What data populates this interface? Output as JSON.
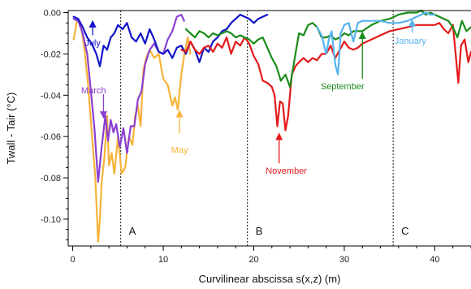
{
  "chart_data": {
    "type": "line",
    "xlabel": "Curvilinear abscissa s(x,z) (m)",
    "ylabel": "Twall - Tair  (°C)",
    "xlim": [
      -0.5,
      44
    ],
    "ylim": [
      -0.113,
      0.001
    ],
    "x_ticks": [
      0,
      10,
      20,
      30,
      40
    ],
    "y_ticks": [
      0.0,
      -0.02,
      -0.04,
      -0.06,
      -0.08,
      -0.1
    ],
    "y_tick_labels": [
      "0.00",
      "-0.02",
      "-0.04",
      "-0.06",
      "-0.08",
      "-0.10"
    ],
    "grid": false,
    "dividers": [
      {
        "x": 5.3,
        "label": "A"
      },
      {
        "x": 19.3,
        "label": "B"
      },
      {
        "x": 35.4,
        "label": "C"
      }
    ],
    "series": [
      {
        "name": "May",
        "color": "#f7b33a",
        "points": [
          [
            0.1,
            -0.013
          ],
          [
            0.5,
            -0.003
          ],
          [
            0.9,
            -0.006
          ],
          [
            1.3,
            -0.018
          ],
          [
            1.7,
            -0.035
          ],
          [
            2.1,
            -0.058
          ],
          [
            2.5,
            -0.08
          ],
          [
            2.8,
            -0.111
          ],
          [
            3.0,
            -0.1
          ],
          [
            3.2,
            -0.082
          ],
          [
            3.5,
            -0.07
          ],
          [
            3.8,
            -0.05
          ],
          [
            4.0,
            -0.074
          ],
          [
            4.3,
            -0.068
          ],
          [
            4.6,
            -0.078
          ],
          [
            5.0,
            -0.06
          ],
          [
            5.4,
            -0.078
          ],
          [
            5.8,
            -0.075
          ],
          [
            6.2,
            -0.06
          ],
          [
            6.6,
            -0.064
          ],
          [
            6.9,
            -0.05
          ],
          [
            7.2,
            -0.045
          ],
          [
            7.5,
            -0.055
          ],
          [
            7.8,
            -0.028
          ],
          [
            8.1,
            -0.022
          ],
          [
            8.5,
            -0.018
          ],
          [
            9.0,
            -0.022
          ],
          [
            9.5,
            -0.02
          ],
          [
            10.0,
            -0.032
          ],
          [
            10.5,
            -0.035
          ],
          [
            11.0,
            -0.045
          ],
          [
            11.3,
            -0.041
          ],
          [
            11.6,
            -0.047
          ],
          [
            12.0,
            -0.03
          ],
          [
            12.3,
            -0.021
          ],
          [
            12.7,
            -0.012
          ],
          [
            13.0,
            -0.02
          ]
        ]
      },
      {
        "name": "March",
        "color": "#8b3fd1",
        "points": [
          [
            0.1,
            -0.003
          ],
          [
            0.6,
            -0.004
          ],
          [
            1.1,
            -0.01
          ],
          [
            1.6,
            -0.02
          ],
          [
            2.0,
            -0.038
          ],
          [
            2.4,
            -0.056
          ],
          [
            2.8,
            -0.082
          ],
          [
            3.2,
            -0.065
          ],
          [
            3.6,
            -0.05
          ],
          [
            3.9,
            -0.062
          ],
          [
            4.2,
            -0.052
          ],
          [
            4.5,
            -0.058
          ],
          [
            4.8,
            -0.054
          ],
          [
            5.2,
            -0.065
          ],
          [
            5.6,
            -0.056
          ],
          [
            6.0,
            -0.068
          ],
          [
            6.4,
            -0.055
          ],
          [
            6.8,
            -0.055
          ],
          [
            7.2,
            -0.042
          ],
          [
            7.6,
            -0.038
          ],
          [
            8.0,
            -0.025
          ],
          [
            8.5,
            -0.018
          ],
          [
            9.0,
            -0.015
          ],
          [
            9.5,
            -0.019
          ],
          [
            10.0,
            -0.02
          ],
          [
            10.5,
            -0.013
          ],
          [
            11.0,
            -0.009
          ],
          [
            11.5,
            -0.002
          ],
          [
            12.0,
            -0.001
          ],
          [
            12.3,
            -0.004
          ]
        ]
      },
      {
        "name": "July",
        "color": "#1414c8",
        "points": [
          [
            0.1,
            -0.002
          ],
          [
            0.6,
            -0.003
          ],
          [
            1.1,
            -0.007
          ],
          [
            1.6,
            -0.012
          ],
          [
            2.1,
            -0.015
          ],
          [
            2.6,
            -0.02
          ],
          [
            3.0,
            -0.026
          ],
          [
            3.4,
            -0.016
          ],
          [
            3.8,
            -0.018
          ],
          [
            4.2,
            -0.012
          ],
          [
            4.6,
            -0.01
          ],
          [
            5.0,
            -0.006
          ],
          [
            5.5,
            -0.008
          ],
          [
            6.0,
            -0.005
          ],
          [
            6.5,
            -0.012
          ],
          [
            7.0,
            -0.014
          ],
          [
            7.5,
            -0.01
          ],
          [
            8.0,
            -0.015
          ],
          [
            8.5,
            -0.008
          ],
          [
            9.0,
            -0.013
          ],
          [
            9.5,
            -0.019
          ],
          [
            10.0,
            -0.02
          ],
          [
            10.5,
            -0.018
          ],
          [
            11.0,
            -0.022
          ],
          [
            11.5,
            -0.017
          ],
          [
            12.0,
            -0.016
          ],
          [
            12.5,
            -0.02
          ],
          [
            13.0,
            -0.014
          ],
          [
            13.5,
            -0.018
          ],
          [
            14.0,
            -0.024
          ],
          [
            14.5,
            -0.017
          ],
          [
            15.0,
            -0.019
          ],
          [
            15.5,
            -0.014
          ],
          [
            16.0,
            -0.012
          ],
          [
            16.5,
            -0.009
          ],
          [
            17.0,
            -0.008
          ],
          [
            17.5,
            -0.005
          ],
          [
            18.0,
            -0.003
          ],
          [
            18.5,
            -0.001
          ],
          [
            19.0,
            -0.002
          ],
          [
            19.5,
            -0.003
          ],
          [
            20.0,
            -0.005
          ],
          [
            20.5,
            -0.003
          ],
          [
            21.0,
            -0.002
          ],
          [
            21.5,
            -0.001
          ]
        ]
      },
      {
        "name": "November",
        "color": "#e51a1a",
        "points": [
          [
            12.0,
            -0.018
          ],
          [
            12.5,
            -0.019
          ],
          [
            13.0,
            -0.014
          ],
          [
            13.5,
            -0.018
          ],
          [
            14.0,
            -0.02
          ],
          [
            14.5,
            -0.017
          ],
          [
            15.0,
            -0.016
          ],
          [
            15.5,
            -0.019
          ],
          [
            16.0,
            -0.015
          ],
          [
            16.5,
            -0.017
          ],
          [
            17.0,
            -0.012
          ],
          [
            17.5,
            -0.02
          ],
          [
            18.0,
            -0.014
          ],
          [
            18.5,
            -0.016
          ],
          [
            19.0,
            -0.012
          ],
          [
            19.5,
            -0.015
          ],
          [
            20.0,
            -0.021
          ],
          [
            20.5,
            -0.025
          ],
          [
            21.0,
            -0.033
          ],
          [
            21.5,
            -0.034
          ],
          [
            22.0,
            -0.036
          ],
          [
            22.3,
            -0.04
          ],
          [
            22.6,
            -0.055
          ],
          [
            22.9,
            -0.043
          ],
          [
            23.2,
            -0.044
          ],
          [
            23.5,
            -0.057
          ],
          [
            23.8,
            -0.05
          ],
          [
            24.2,
            -0.03
          ],
          [
            24.6,
            -0.026
          ],
          [
            25.0,
            -0.024
          ],
          [
            25.5,
            -0.022
          ],
          [
            26.0,
            -0.024
          ],
          [
            26.5,
            -0.022
          ],
          [
            27.0,
            -0.023
          ],
          [
            27.5,
            -0.02
          ],
          [
            28.0,
            -0.02
          ],
          [
            28.5,
            -0.016
          ],
          [
            29.0,
            -0.022
          ],
          [
            29.5,
            -0.018
          ],
          [
            30.0,
            -0.014
          ],
          [
            30.5,
            -0.017
          ],
          [
            31.0,
            -0.018
          ],
          [
            31.5,
            -0.017
          ],
          [
            32.0,
            -0.015
          ],
          [
            33.0,
            -0.013
          ],
          [
            34.0,
            -0.011
          ],
          [
            35.0,
            -0.009
          ],
          [
            36.0,
            -0.008
          ],
          [
            37.0,
            -0.007
          ],
          [
            38.0,
            -0.006
          ],
          [
            39.0,
            -0.006
          ],
          [
            40.0,
            -0.006
          ],
          [
            40.5,
            -0.005
          ],
          [
            41.0,
            -0.008
          ],
          [
            41.5,
            -0.01
          ],
          [
            42.0,
            -0.006
          ],
          [
            42.3,
            -0.02
          ],
          [
            42.6,
            -0.034
          ],
          [
            42.9,
            -0.016
          ],
          [
            43.3,
            -0.013
          ],
          [
            43.7,
            -0.024
          ],
          [
            44.0,
            -0.019
          ]
        ]
      },
      {
        "name": "September",
        "color": "#1a8c1a",
        "points": [
          [
            12.5,
            -0.008
          ],
          [
            13.0,
            -0.01
          ],
          [
            13.5,
            -0.012
          ],
          [
            14.0,
            -0.009
          ],
          [
            14.5,
            -0.01
          ],
          [
            15.0,
            -0.012
          ],
          [
            15.5,
            -0.01
          ],
          [
            16.0,
            -0.011
          ],
          [
            16.5,
            -0.01
          ],
          [
            17.0,
            -0.009
          ],
          [
            17.5,
            -0.01
          ],
          [
            18.0,
            -0.012
          ],
          [
            18.5,
            -0.011
          ],
          [
            19.0,
            -0.012
          ],
          [
            19.5,
            -0.013
          ],
          [
            20.0,
            -0.015
          ],
          [
            20.5,
            -0.013
          ],
          [
            21.0,
            -0.012
          ],
          [
            21.5,
            -0.017
          ],
          [
            22.0,
            -0.022
          ],
          [
            22.5,
            -0.026
          ],
          [
            23.0,
            -0.033
          ],
          [
            23.5,
            -0.03
          ],
          [
            24.0,
            -0.036
          ],
          [
            24.3,
            -0.028
          ],
          [
            24.6,
            -0.02
          ],
          [
            25.0,
            -0.01
          ],
          [
            25.5,
            -0.011
          ],
          [
            26.0,
            -0.006
          ],
          [
            26.5,
            -0.005
          ],
          [
            27.0,
            -0.007
          ],
          [
            27.5,
            -0.012
          ],
          [
            28.0,
            -0.012
          ],
          [
            28.5,
            -0.011
          ],
          [
            29.0,
            -0.013
          ],
          [
            29.5,
            -0.012
          ],
          [
            30.0,
            -0.01
          ],
          [
            30.5,
            -0.011
          ],
          [
            31.0,
            -0.009
          ],
          [
            31.5,
            -0.009
          ],
          [
            32.0,
            -0.009
          ],
          [
            33.0,
            -0.006
          ],
          [
            34.0,
            -0.004
          ],
          [
            35.0,
            -0.003
          ],
          [
            36.0,
            -0.001
          ],
          [
            37.0,
            0.0
          ],
          [
            38.0,
            0.0
          ],
          [
            38.5,
            0.001
          ],
          [
            39.0,
            -0.001
          ],
          [
            39.5,
            0.0
          ],
          [
            40.0,
            -0.001
          ],
          [
            40.5,
            -0.002
          ],
          [
            41.0,
            -0.003
          ],
          [
            41.5,
            -0.004
          ],
          [
            42.0,
            -0.007
          ],
          [
            42.5,
            -0.012
          ],
          [
            43.0,
            -0.004
          ],
          [
            43.5,
            -0.009
          ],
          [
            44.0,
            -0.007
          ]
        ]
      },
      {
        "name": "January",
        "color": "#56b4ef",
        "points": [
          [
            27.0,
            -0.007
          ],
          [
            27.5,
            -0.011
          ],
          [
            28.0,
            -0.02
          ],
          [
            28.3,
            -0.013
          ],
          [
            28.6,
            -0.009
          ],
          [
            29.0,
            -0.025
          ],
          [
            29.3,
            -0.03
          ],
          [
            29.6,
            -0.01
          ],
          [
            30.0,
            -0.006
          ],
          [
            30.5,
            -0.005
          ],
          [
            31.0,
            -0.014
          ],
          [
            31.5,
            -0.005
          ],
          [
            32.0,
            -0.004
          ],
          [
            33.0,
            -0.004
          ],
          [
            34.0,
            -0.004
          ],
          [
            35.0,
            -0.005
          ],
          [
            36.0,
            -0.005
          ],
          [
            37.0,
            -0.004
          ],
          [
            37.5,
            -0.003
          ],
          [
            38.0,
            -0.002
          ],
          [
            38.5,
            -0.001
          ],
          [
            39.0,
            0.0
          ],
          [
            39.5,
            -0.001
          ],
          [
            40.0,
            -0.001
          ]
        ]
      }
    ],
    "annotations": [
      {
        "series": "July",
        "label": "July",
        "color": "#1414c8",
        "arrow_from": [
          2.2,
          -0.011
        ],
        "arrow_to": [
          2.2,
          -0.004
        ],
        "label_at": [
          2.2,
          -0.0145
        ]
      },
      {
        "series": "March",
        "label": "March",
        "color": "#8b3fd1",
        "arrow_from": [
          3.4,
          -0.0395
        ],
        "arrow_to": [
          3.4,
          -0.051
        ],
        "label_at": [
          2.3,
          -0.0375
        ]
      },
      {
        "series": "May",
        "label": "May",
        "color": "#f7b33a",
        "arrow_from": [
          11.8,
          -0.0585
        ],
        "arrow_to": [
          11.8,
          -0.0475
        ],
        "label_at": [
          11.8,
          -0.0665
        ]
      },
      {
        "series": "November",
        "label": "November",
        "color": "#e51a1a",
        "arrow_from": [
          22.8,
          -0.073
        ],
        "arrow_to": [
          22.8,
          -0.0585
        ],
        "label_at": [
          23.6,
          -0.0765
        ]
      },
      {
        "series": "September",
        "label": "September",
        "color": "#1a8c1a",
        "arrow_from": [
          32.0,
          -0.032
        ],
        "arrow_to": [
          32.0,
          -0.0095
        ],
        "label_at": [
          29.8,
          -0.0355
        ]
      },
      {
        "series": "January",
        "label": "January",
        "color": "#56b4ef",
        "arrow_from": [
          37.5,
          -0.0095
        ],
        "arrow_to": [
          37.5,
          -0.0035
        ],
        "label_at": [
          37.3,
          -0.0135
        ]
      }
    ]
  }
}
